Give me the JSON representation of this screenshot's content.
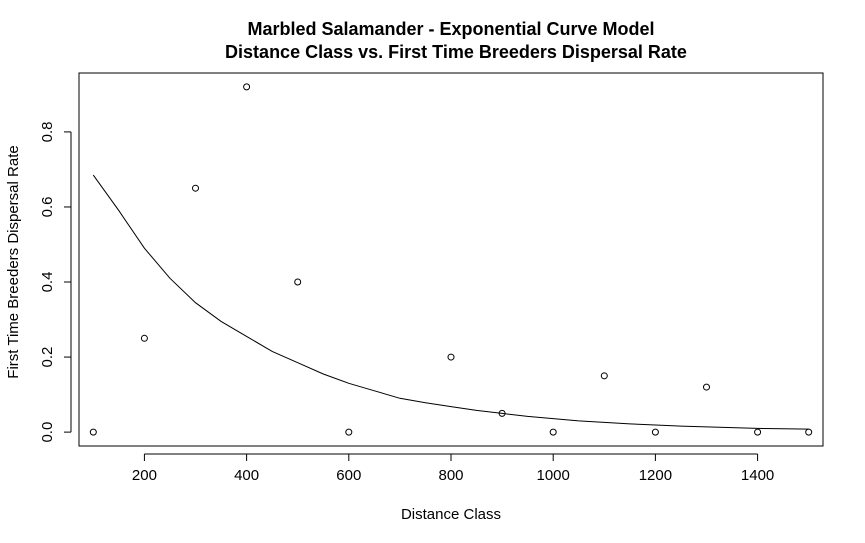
{
  "chart_data": {
    "type": "scatter",
    "title": "Marbled Salamander - Exponential Curve Model",
    "subtitle": "Distance Class vs. First Time Breeders Dispersal Rate",
    "xlabel": "Distance Class",
    "ylabel": "First Time Breeders Dispersal Rate",
    "xlim": [
      72,
      1528
    ],
    "ylim": [
      -0.037,
      0.957
    ],
    "xticks": [
      200,
      400,
      600,
      800,
      1000,
      1200,
      1400
    ],
    "xtick_labels": [
      "200",
      "400",
      "600",
      "800",
      "1000",
      "1200",
      "1400"
    ],
    "yticks": [
      0.0,
      0.2,
      0.4,
      0.6,
      0.8
    ],
    "ytick_labels": [
      "0.0",
      "0.2",
      "0.4",
      "0.6",
      "0.8"
    ],
    "grid": false,
    "legend": "none",
    "points": {
      "x": [
        100,
        200,
        300,
        400,
        500,
        600,
        800,
        900,
        1000,
        1100,
        1200,
        1300,
        1400,
        1500
      ],
      "y": [
        0.0,
        0.25,
        0.65,
        0.92,
        0.4,
        0.0,
        0.2,
        0.05,
        0.0,
        0.15,
        0.0,
        0.12,
        0.0,
        0.0
      ]
    },
    "curve": {
      "model": "exponential",
      "x": [
        100,
        150,
        200,
        250,
        300,
        350,
        400,
        450,
        500,
        550,
        600,
        650,
        700,
        750,
        800,
        850,
        900,
        950,
        1000,
        1050,
        1100,
        1150,
        1200,
        1250,
        1300,
        1350,
        1400,
        1450,
        1500
      ],
      "y": [
        0.685,
        0.59,
        0.49,
        0.41,
        0.345,
        0.295,
        0.255,
        0.215,
        0.185,
        0.155,
        0.13,
        0.11,
        0.09,
        0.078,
        0.068,
        0.058,
        0.05,
        0.042,
        0.036,
        0.03,
        0.026,
        0.022,
        0.019,
        0.016,
        0.014,
        0.012,
        0.01,
        0.009,
        0.008
      ]
    }
  }
}
